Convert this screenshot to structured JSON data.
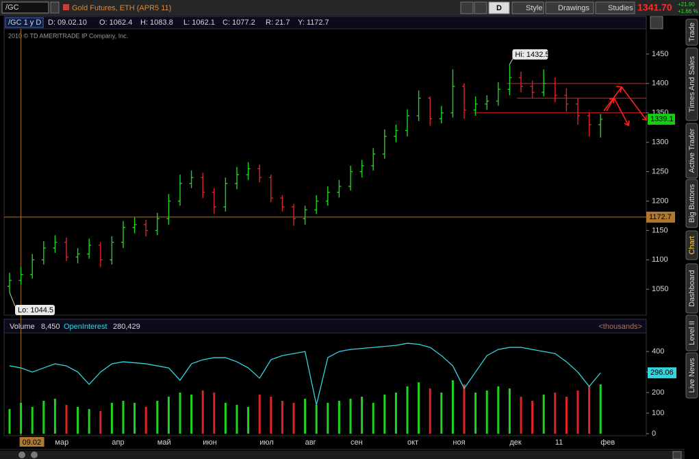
{
  "toolbar": {
    "symbol": "/GC",
    "description": "Gold Futures, ETH (APR5 11)",
    "aggregation": "D",
    "buttons": [
      "Style",
      "Drawings",
      "Studies"
    ],
    "last": "1341.70",
    "change": "+21.90",
    "change_pct": "+1.66 %"
  },
  "tabs": [
    "Trade",
    "Times And Sales",
    "Active Trader",
    "Big Buttons",
    "Chart",
    "Dashboard",
    "Level II",
    "Live News"
  ],
  "header": {
    "study": "/GC 1 y D",
    "fields": [
      "D: 09.02.10",
      "O: 1062.4",
      "H: 1083.8",
      "L: 1062.1",
      "C: 1077.2",
      "R: 21.7",
      "Y: 1172.7"
    ],
    "copyright": "2010 © TD AMERITRADE IP Company, Inc."
  },
  "chart_data": [
    {
      "type": "ohlc",
      "categories": [
        null,
        "09.02",
        null,
        null,
        "мар",
        null,
        null,
        null,
        null,
        "апр",
        null,
        null,
        null,
        "май",
        null,
        null,
        null,
        "июн",
        null,
        null,
        null,
        null,
        "июл",
        null,
        null,
        null,
        "авг",
        null,
        null,
        null,
        "сен",
        null,
        null,
        null,
        null,
        "окт",
        null,
        null,
        null,
        "ноя",
        null,
        null,
        null,
        null,
        "дек",
        null,
        null,
        null,
        "11",
        null,
        null,
        null,
        "фев"
      ],
      "open": [
        1055,
        1065,
        1075,
        1100,
        1120,
        1130,
        1105,
        1110,
        1125,
        1100,
        1130,
        1155,
        1160,
        1150,
        1170,
        1200,
        1230,
        1240,
        1215,
        1190,
        1230,
        1245,
        1255,
        1240,
        1205,
        1190,
        1170,
        1185,
        1200,
        1215,
        1225,
        1250,
        1260,
        1280,
        1310,
        1320,
        1345,
        1375,
        1340,
        1350,
        1395,
        1355,
        1365,
        1370,
        1390,
        1410,
        1395,
        1385,
        1400,
        1380,
        1365,
        1345,
        1330
      ],
      "high": [
        1078,
        1088,
        1110,
        1132,
        1142,
        1138,
        1120,
        1136,
        1130,
        1140,
        1166,
        1172,
        1168,
        1180,
        1212,
        1245,
        1252,
        1248,
        1222,
        1240,
        1258,
        1266,
        1262,
        1245,
        1210,
        1195,
        1192,
        1210,
        1225,
        1236,
        1260,
        1270,
        1290,
        1322,
        1330,
        1356,
        1388,
        1378,
        1362,
        1424,
        1400,
        1378,
        1380,
        1402,
        1432.5,
        1420,
        1405,
        1424,
        1410,
        1392,
        1375,
        1350,
        1348
      ],
      "low": [
        1044.5,
        1058,
        1068,
        1092,
        1112,
        1098,
        1094,
        1102,
        1088,
        1092,
        1120,
        1145,
        1140,
        1142,
        1160,
        1192,
        1222,
        1205,
        1178,
        1182,
        1220,
        1236,
        1232,
        1198,
        1182,
        1158,
        1160,
        1178,
        1192,
        1206,
        1218,
        1240,
        1252,
        1272,
        1300,
        1310,
        1336,
        1328,
        1332,
        1342,
        1340,
        1345,
        1355,
        1362,
        1380,
        1385,
        1375,
        1378,
        1368,
        1352,
        1330,
        1310,
        1308
      ],
      "close": [
        1065,
        1075,
        1100,
        1120,
        1130,
        1105,
        1110,
        1125,
        1100,
        1130,
        1155,
        1160,
        1150,
        1170,
        1200,
        1230,
        1240,
        1215,
        1190,
        1230,
        1245,
        1255,
        1240,
        1205,
        1190,
        1170,
        1185,
        1200,
        1215,
        1225,
        1250,
        1260,
        1280,
        1310,
        1320,
        1345,
        1375,
        1340,
        1350,
        1395,
        1355,
        1365,
        1370,
        1390,
        1410,
        1395,
        1385,
        1400,
        1380,
        1365,
        1345,
        1330,
        1339.1
      ],
      "up_color": "#1fd41f",
      "down_color": "#e02424",
      "ylim": [
        1006,
        1493
      ],
      "yticks": [
        1050,
        1100,
        1150,
        1200,
        1250,
        1300,
        1350,
        1400,
        1450
      ],
      "crosshair_y": 1172.7,
      "levels": [
        1400,
        1375,
        1350
      ],
      "level_color": "#e02020",
      "annotations": [
        "Hi: 1432.5",
        "Lo: 1044.5"
      ]
    },
    {
      "type": "volume",
      "units": "<thousands>",
      "series": [
        {
          "name": "Volume",
          "readout": "8,450",
          "values": [
            120,
            150,
            130,
            160,
            170,
            140,
            130,
            120,
            110,
            150,
            160,
            150,
            130,
            160,
            180,
            200,
            190,
            210,
            200,
            150,
            140,
            130,
            190,
            180,
            160,
            150,
            170,
            140,
            150,
            160,
            170,
            180,
            150,
            190,
            200,
            230,
            250,
            220,
            200,
            260,
            240,
            200,
            210,
            230,
            220,
            180,
            160,
            190,
            200,
            180,
            210,
            230,
            240
          ]
        },
        {
          "name": "OpenInterest",
          "readout": "280,429",
          "color": "#33d6e0",
          "values": [
            330,
            320,
            300,
            320,
            340,
            330,
            300,
            240,
            300,
            340,
            350,
            345,
            340,
            330,
            320,
            260,
            340,
            360,
            370,
            370,
            350,
            320,
            270,
            360,
            380,
            390,
            400,
            140,
            370,
            400,
            410,
            415,
            420,
            425,
            430,
            440,
            435,
            420,
            380,
            330,
            220,
            300,
            380,
            410,
            420,
            420,
            410,
            400,
            390,
            350,
            300,
            230,
            296.06
          ]
        }
      ],
      "ylim": [
        0,
        487
      ],
      "yticks": [
        0,
        100,
        200,
        300,
        400
      ]
    }
  ]
}
